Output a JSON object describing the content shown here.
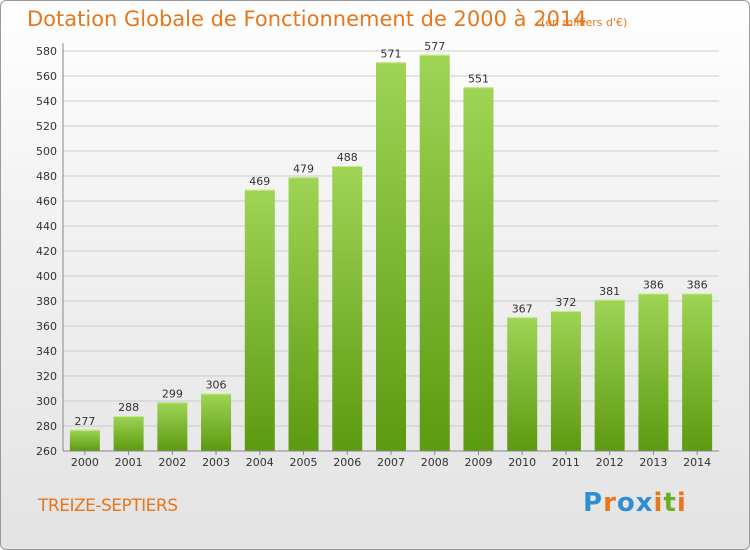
{
  "header": {
    "title": "Dotation Globale de Fonctionnement de 2000 à 2014",
    "unit": "(en milliers d'€)"
  },
  "footer": {
    "commune": "TREIZE-SEPTIERS",
    "logo_text": "Proxiti"
  },
  "colors": {
    "title": "#e8761b",
    "bar_top": "#9fd455",
    "bar_bottom": "#5c9a10",
    "grid": "#cccccc",
    "axis_text": "#333333",
    "logo_letters": [
      "#2f8fd1",
      "#e8761b",
      "#2f8fd1",
      "#2f8fd1",
      "#e8761b",
      "#6ab023",
      "#e8761b"
    ]
  },
  "chart_data": {
    "type": "bar",
    "title": "Dotation Globale de Fonctionnement de 2000 à 2014",
    "subtitle": "(en milliers d'€)",
    "xlabel": "",
    "ylabel": "",
    "categories": [
      "2000",
      "2001",
      "2002",
      "2003",
      "2004",
      "2005",
      "2006",
      "2007",
      "2008",
      "2009",
      "2010",
      "2011",
      "2012",
      "2013",
      "2014"
    ],
    "values": [
      277,
      288,
      299,
      306,
      469,
      479,
      488,
      571,
      577,
      551,
      367,
      372,
      381,
      386,
      386
    ],
    "ylim": [
      260,
      580
    ],
    "yticks": [
      260,
      280,
      300,
      320,
      340,
      360,
      380,
      400,
      420,
      440,
      460,
      480,
      500,
      520,
      540,
      560,
      580
    ],
    "grid": true,
    "legend": "none"
  }
}
